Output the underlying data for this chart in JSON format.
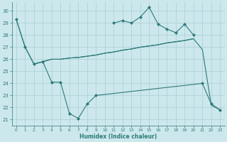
{
  "xlabel": "Humidex (Indice chaleur)",
  "bg_color": "#cce8ec",
  "grid_color": "#aacdd4",
  "line_color": "#2d7a7a",
  "xlim": [
    -0.5,
    23.5
  ],
  "ylim": [
    20.5,
    30.7
  ],
  "yticks": [
    21,
    22,
    23,
    24,
    25,
    26,
    27,
    28,
    29,
    30
  ],
  "xticks": [
    0,
    1,
    2,
    3,
    4,
    5,
    6,
    7,
    8,
    9,
    10,
    11,
    12,
    13,
    14,
    15,
    16,
    17,
    18,
    19,
    20,
    21,
    22,
    23
  ],
  "line1_x": [
    0,
    1,
    2,
    3,
    4,
    5,
    6,
    7,
    8,
    9,
    21,
    22,
    23
  ],
  "line1_y": [
    29.3,
    27.0,
    25.6,
    25.8,
    24.1,
    24.1,
    21.5,
    21.1,
    22.3,
    23.0,
    24.0,
    22.3,
    21.8
  ],
  "line2_x": [
    11,
    12,
    13,
    14,
    15,
    16,
    17,
    18,
    19,
    20
  ],
  "line2_y": [
    29.0,
    29.2,
    29.0,
    29.5,
    30.3,
    28.9,
    28.5,
    28.2,
    28.9,
    28.0
  ],
  "line3_x": [
    0,
    1,
    2,
    3,
    4,
    5,
    6,
    7,
    8,
    9,
    10,
    11,
    12,
    13,
    14,
    15,
    16,
    17,
    18,
    19,
    20
  ],
  "line3_y": [
    29.3,
    27.0,
    25.6,
    25.8,
    26.0,
    26.0,
    26.1,
    26.15,
    26.25,
    26.35,
    26.5,
    26.6,
    26.75,
    26.85,
    27.0,
    27.1,
    27.2,
    27.35,
    27.45,
    27.55,
    27.7
  ],
  "line4_x": [
    2,
    3,
    4,
    5,
    6,
    7,
    8,
    9,
    10,
    11,
    12,
    13,
    14,
    15,
    16,
    17,
    18,
    19,
    20,
    21,
    22,
    23
  ],
  "line4_y": [
    25.6,
    25.8,
    26.0,
    26.0,
    26.1,
    26.15,
    26.25,
    26.35,
    26.5,
    26.6,
    26.75,
    26.85,
    27.0,
    27.1,
    27.2,
    27.35,
    27.45,
    27.55,
    27.7,
    26.8,
    22.2,
    21.8
  ]
}
